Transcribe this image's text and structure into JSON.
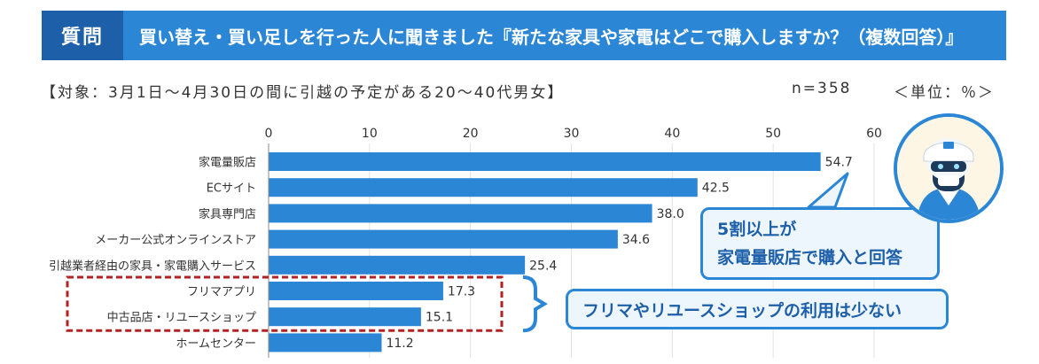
{
  "header": {
    "tag": "質問",
    "title": "買い替え・買い足しを行った人に聞きました『新たな家具や家電はどこで購入しますか？（複数回答）』"
  },
  "subtitle": "【対象：3月1日～4月30日の間に引越の予定がある20～40代男女】",
  "n_label": "n=358",
  "unit_label": "＜単位：％＞",
  "callouts": {
    "top_line1": "5割以上が",
    "top_line2": "家電量販店で購入と回答",
    "bottom": "フリマやリユースショップの利用は少ない"
  },
  "colors": {
    "bar": "#2b86d6",
    "highlight_box": "#b22222",
    "accent": "#1d5fa8"
  },
  "chart_data": {
    "type": "bar",
    "orientation": "horizontal",
    "categories": [
      "家電量販店",
      "ECサイト",
      "家具専門店",
      "メーカー公式オンラインストア",
      "引越業者経由の家具・家電購入サービス",
      "フリマアプリ",
      "中古品店・リユースショップ",
      "ホームセンター"
    ],
    "values": [
      54.7,
      42.5,
      38.0,
      34.6,
      25.4,
      17.3,
      15.1,
      11.2
    ],
    "value_labels": [
      "54.7",
      "42.5",
      "38.0",
      "34.6",
      "25.4",
      "17.3",
      "15.1",
      "11.2"
    ],
    "xlim": [
      0,
      60
    ],
    "xticks": [
      0,
      10,
      20,
      30,
      40,
      50,
      60
    ],
    "highlighted": [
      "フリマアプリ",
      "中古品店・リユースショップ"
    ]
  }
}
